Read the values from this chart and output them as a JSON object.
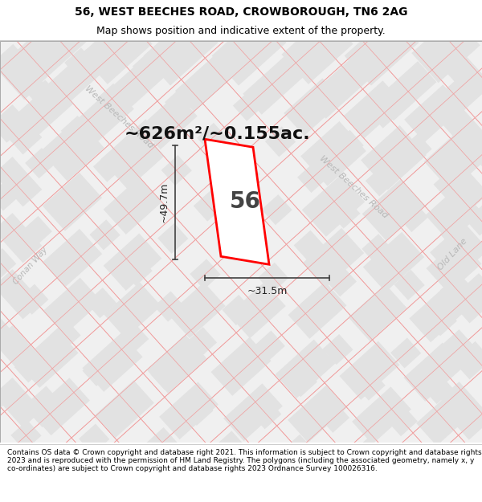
{
  "title_line1": "56, WEST BEECHES ROAD, CROWBOROUGH, TN6 2AG",
  "title_line2": "Map shows position and indicative extent of the property.",
  "footer_text": "Contains OS data © Crown copyright and database right 2021. This information is subject to Crown copyright and database rights 2023 and is reproduced with the permission of HM Land Registry. The polygons (including the associated geometry, namely x, y co-ordinates) are subject to Crown copyright and database rights 2023 Ordnance Survey 100026316.",
  "area_label": "~626m²/~0.155ac.",
  "number_label": "56",
  "dim_vertical": "~49.7m",
  "dim_horizontal": "~31.5m",
  "road_label_upper": "West Beeches Road",
  "road_label_lower": "West Beeches Road",
  "road_label_left": "Conan Way",
  "road_label_right": "Old Lane",
  "bg_color": "#f0f0f0",
  "block_fc": "#e2e2e2",
  "block_ec": "#f0a0a0",
  "road_line_color": "#f0a0a0",
  "highlight_color": "#ff0000",
  "dim_line_color": "#404040",
  "road_label_color": "#b8b8b8",
  "title_color": "#000000",
  "footer_color": "#000000",
  "title_fontsize": 10,
  "subtitle_fontsize": 9,
  "footer_fontsize": 6.5,
  "area_fontsize": 16,
  "number_fontsize": 20,
  "dim_fontsize": 9
}
